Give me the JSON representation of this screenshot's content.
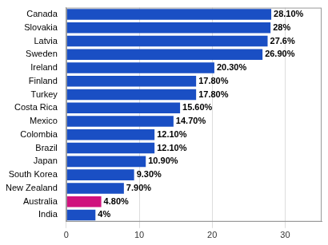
{
  "chart_data": {
    "type": "bar",
    "orientation": "horizontal",
    "categories": [
      "Canada",
      "Slovakia",
      "Latvia",
      "Sweden",
      "Ireland",
      "Finland",
      "Turkey",
      "Costa Rica",
      "Mexico",
      "Colombia",
      "Brazil",
      "Japan",
      "South Korea",
      "New Zealand",
      "Australia",
      "India"
    ],
    "values": [
      28.1,
      28,
      27.6,
      26.9,
      20.3,
      17.8,
      17.8,
      15.6,
      14.7,
      12.1,
      12.1,
      10.9,
      9.3,
      7.9,
      4.8,
      4
    ],
    "value_labels": [
      "28.10%",
      "28%",
      "27.6%",
      "26.90%",
      "20.30%",
      "17.80%",
      "17.80%",
      "15.60%",
      "14.70%",
      "12.10%",
      "12.10%",
      "10.90%",
      "9.30%",
      "7.90%",
      "4.80%",
      "4%"
    ],
    "colors": [
      "#1a4fc4",
      "#1a4fc4",
      "#1a4fc4",
      "#1a4fc4",
      "#1a4fc4",
      "#1a4fc4",
      "#1a4fc4",
      "#1a4fc4",
      "#1a4fc4",
      "#1a4fc4",
      "#1a4fc4",
      "#1a4fc4",
      "#1a4fc4",
      "#1a4fc4",
      "#d0127e",
      "#1a4fc4"
    ],
    "xlim": [
      0,
      35
    ],
    "xticks": [
      0,
      10,
      20,
      30
    ],
    "grid": true,
    "data_labels": true
  }
}
